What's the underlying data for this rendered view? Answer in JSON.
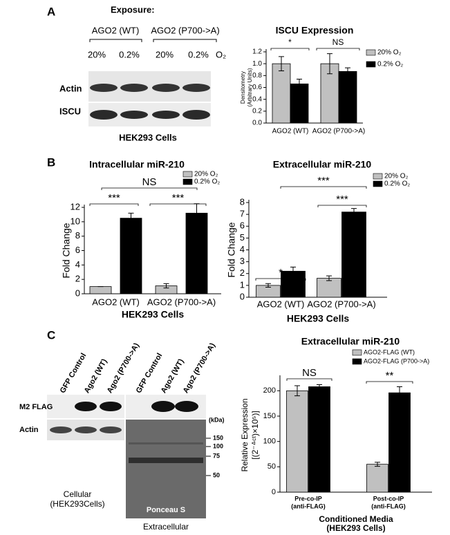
{
  "panel_labels": [
    "A",
    "B",
    "C"
  ],
  "blot_a": {
    "exposure": "Exposure:",
    "groups": [
      "AGO2 (WT)",
      "AGO2 (P700->A)"
    ],
    "conditions": [
      "20%",
      "0.2%",
      "20%",
      "0.2%"
    ],
    "gas": "O₂",
    "rows": [
      "Actin",
      "ISCU"
    ],
    "caption": "HEK293 Cells"
  },
  "blot_c": {
    "lanes": [
      "GFP Control",
      "Ago2 (WT)",
      "Ago2 (P700->A)",
      "GFP Control",
      "Ago2 (WT)",
      "Ago2 (P700->A)"
    ],
    "rows": [
      "M2 FLAG",
      "Actin"
    ],
    "kda_label": "(kDa)",
    "markers": [
      150,
      100,
      75,
      50
    ],
    "stain": "Ponceau S",
    "cellular": [
      "Cellular",
      "(HEK293Cells)"
    ],
    "extracellular": "Extracellular"
  },
  "chart_data": [
    {
      "type": "bar",
      "title": "ISCU Expression",
      "ylabel": [
        "Densitometry",
        "(Arbitrary Units)"
      ],
      "categories": [
        "AGO2 (WT)",
        "AGO2 (P700->A)"
      ],
      "series": [
        {
          "name": "20% O₂",
          "color": "#c0c0c0",
          "values": [
            1.0,
            1.0
          ],
          "errors": [
            0.12,
            0.17
          ]
        },
        {
          "name": "0.2% O₂",
          "color": "#000000",
          "values": [
            0.66,
            0.87
          ],
          "errors": [
            0.08,
            0.06
          ]
        }
      ],
      "ylim": [
        0,
        1.2
      ],
      "yticks": [
        {
          "value": 0,
          "label": "0.0"
        },
        0.2,
        0.4,
        0.6,
        0.8,
        {
          "value": 1,
          "label": "1.0"
        },
        1.2
      ],
      "annotations": [
        "*",
        "NS"
      ]
    },
    {
      "type": "bar",
      "title": "Intracellular miR-210",
      "ylabel": [
        "Fold Change"
      ],
      "xlabel": [
        "HEK293 Cells"
      ],
      "categories": [
        "AGO2 (WT)",
        "AGO2 (P700->A)"
      ],
      "series": [
        {
          "name": "20% O₂",
          "color": "#c0c0c0",
          "values": [
            1.0,
            1.1
          ],
          "errors": [
            0,
            0.3
          ]
        },
        {
          "name": "0.2% O₂",
          "color": "#000000",
          "values": [
            10.5,
            11.2
          ],
          "errors": [
            0.7,
            1.3
          ]
        }
      ],
      "ylim": [
        0,
        12
      ],
      "yticks": [
        0,
        2,
        4,
        6,
        8,
        10,
        12
      ],
      "annotations": [
        "***",
        "***",
        "NS"
      ]
    },
    {
      "type": "bar",
      "title": "Extracellular miR-210",
      "ylabel": [
        "Fold Change"
      ],
      "xlabel": [
        "HEK293 Cells"
      ],
      "categories": [
        "AGO2 (WT)",
        "AGO2 (P700->A)"
      ],
      "series": [
        {
          "name": "20% O₂",
          "color": "#c0c0c0",
          "values": [
            1.0,
            1.6
          ],
          "errors": [
            0.15,
            0.2
          ]
        },
        {
          "name": "0.2% O₂",
          "color": "#000000",
          "values": [
            2.2,
            7.2
          ],
          "errors": [
            0.35,
            0.3
          ]
        }
      ],
      "ylim": [
        0,
        8
      ],
      "yticks": [
        0,
        1,
        2,
        3,
        4,
        5,
        6,
        7,
        8
      ],
      "annotations": [
        "*",
        "***",
        "***"
      ]
    },
    {
      "type": "bar",
      "title": "Extracellular miR-210",
      "ylabel": [
        "Relative Expression",
        "[(2⁻ᐞᶜᵗ)×10⁵)]"
      ],
      "xlabel": [
        "Conditioned Media",
        "(HEK293 Cells)"
      ],
      "categories": [
        "Pre-co-IP",
        "Post-co-IP"
      ],
      "category_sublabels": [
        "(anti-FLAG)",
        "(anti-FLAG)"
      ],
      "series": [
        {
          "name": "AGO2-FLAG (WT)",
          "color": "#c0c0c0",
          "values": [
            200,
            55
          ],
          "errors": [
            10,
            4
          ]
        },
        {
          "name": "AGO2-FLAG (P700->A)",
          "color": "#000000",
          "values": [
            208,
            196
          ],
          "errors": [
            4,
            12
          ]
        }
      ],
      "ylim": [
        0,
        225
      ],
      "yticks": [
        0,
        50,
        100,
        150,
        200
      ],
      "annotations": [
        "NS",
        "**"
      ]
    }
  ]
}
